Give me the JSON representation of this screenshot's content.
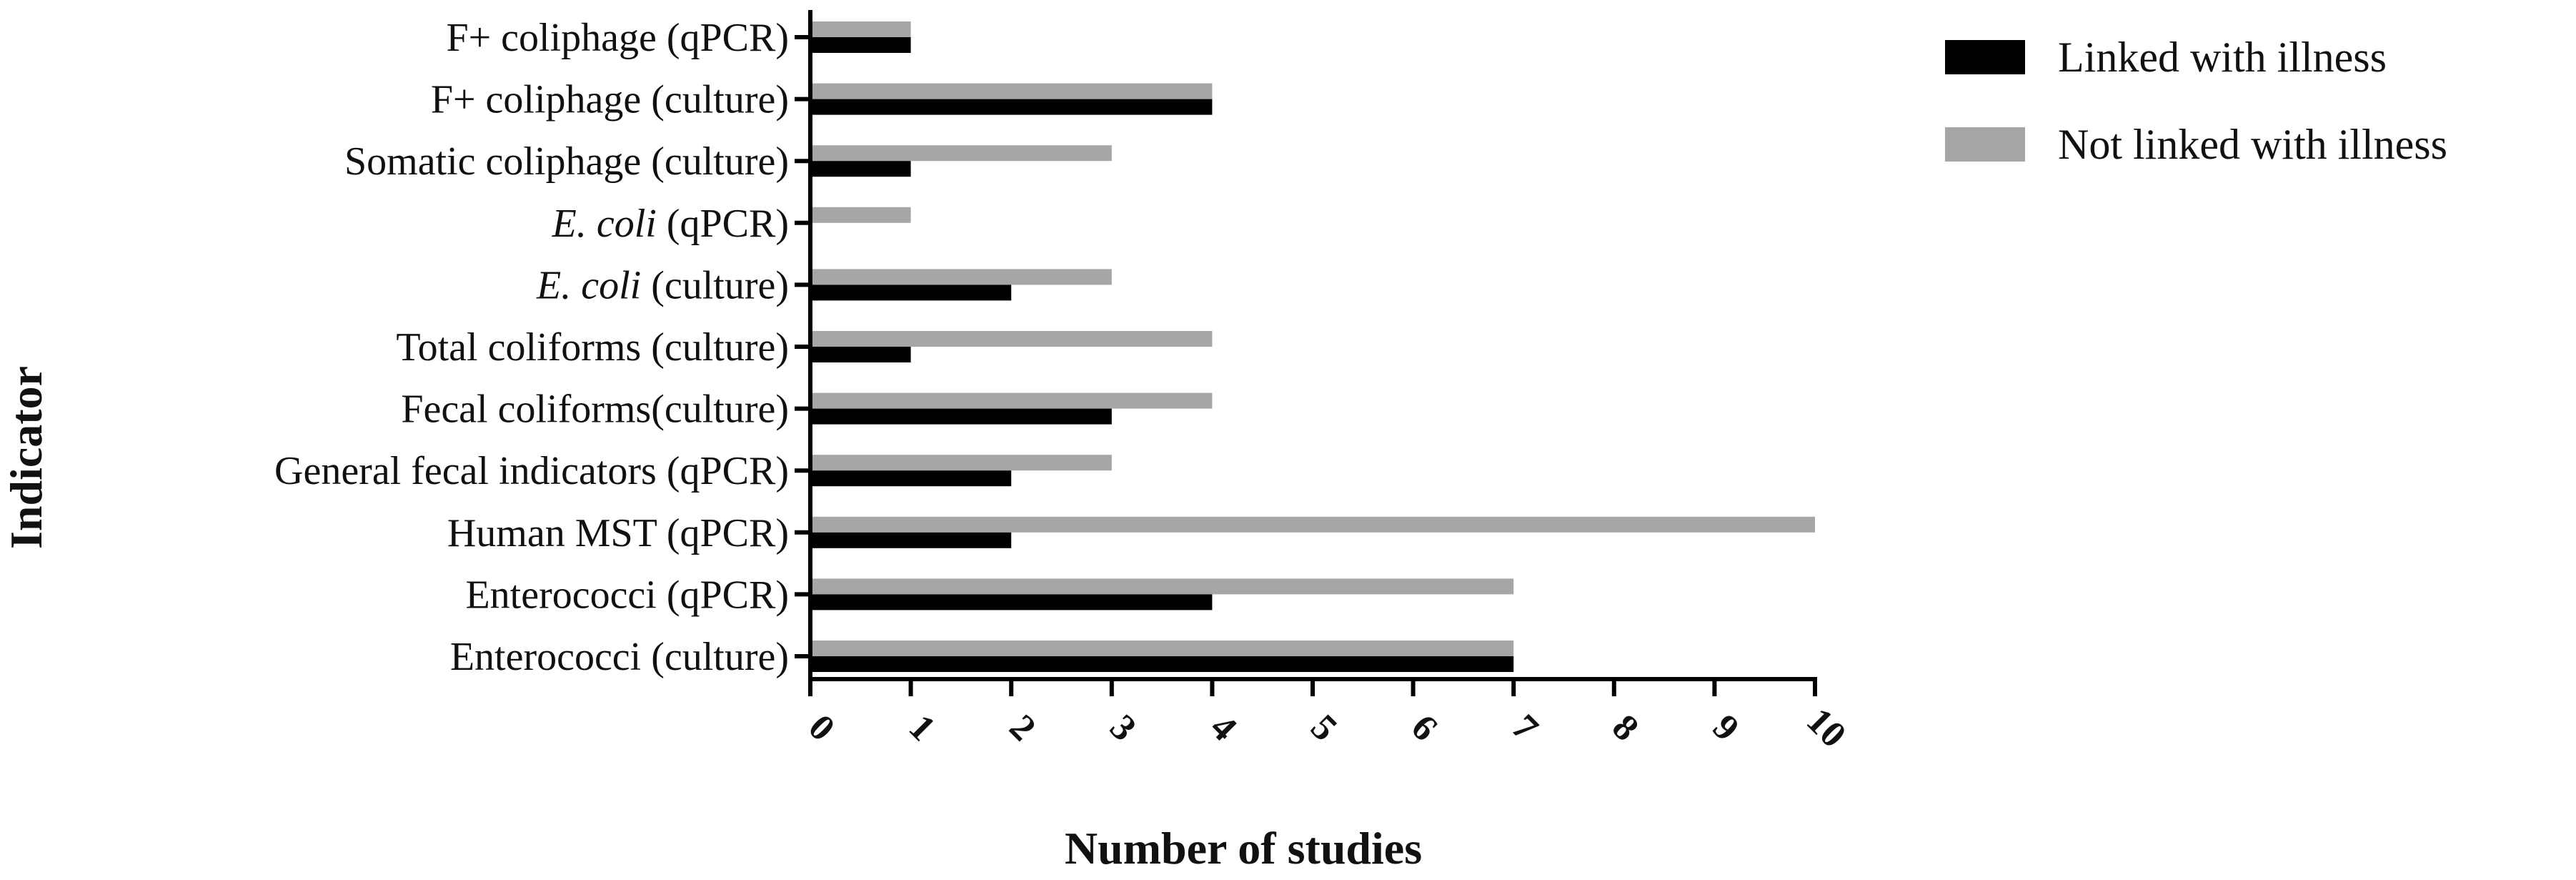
{
  "chart_data": {
    "type": "bar",
    "orientation": "horizontal",
    "title": "",
    "xlabel": "Number of studies",
    "ylabel": "Indicator",
    "xlim": [
      0,
      10
    ],
    "x_ticks": [
      "0",
      "1",
      "2",
      "3",
      "4",
      "5",
      "6",
      "7",
      "8",
      "9",
      "10"
    ],
    "grid": false,
    "legend_position": "top-right",
    "categories": [
      {
        "parts": [
          {
            "text": "F+ coliphage (qPCR)",
            "italic": false
          }
        ]
      },
      {
        "parts": [
          {
            "text": "F+ coliphage (culture)",
            "italic": false
          }
        ]
      },
      {
        "parts": [
          {
            "text": "Somatic coliphage (culture)",
            "italic": false
          }
        ]
      },
      {
        "parts": [
          {
            "text": "E. coli",
            "italic": true
          },
          {
            "text": " (qPCR)",
            "italic": false
          }
        ]
      },
      {
        "parts": [
          {
            "text": "E. coli",
            "italic": true
          },
          {
            "text": " (culture)",
            "italic": false
          }
        ]
      },
      {
        "parts": [
          {
            "text": "Total coliforms (culture)",
            "italic": false
          }
        ]
      },
      {
        "parts": [
          {
            "text": "Fecal coliforms(culture)",
            "italic": false
          }
        ]
      },
      {
        "parts": [
          {
            "text": "General fecal indicators (qPCR)",
            "italic": false
          }
        ]
      },
      {
        "parts": [
          {
            "text": "Human MST (qPCR)",
            "italic": false
          }
        ]
      },
      {
        "parts": [
          {
            "text": "Enterococci (qPCR)",
            "italic": false
          }
        ]
      },
      {
        "parts": [
          {
            "text": "Enterococci (culture)",
            "italic": false
          }
        ]
      }
    ],
    "series": [
      {
        "name": "Not linked with illness",
        "color": "#a6a6a8",
        "values": [
          1,
          4,
          3,
          1,
          3,
          4,
          4,
          3,
          10,
          7,
          7
        ]
      },
      {
        "name": "Linked with illness",
        "color": "#000000",
        "values": [
          1,
          4,
          1,
          0,
          2,
          1,
          3,
          2,
          2,
          4,
          7
        ]
      }
    ],
    "legend_order": [
      1,
      0
    ]
  }
}
